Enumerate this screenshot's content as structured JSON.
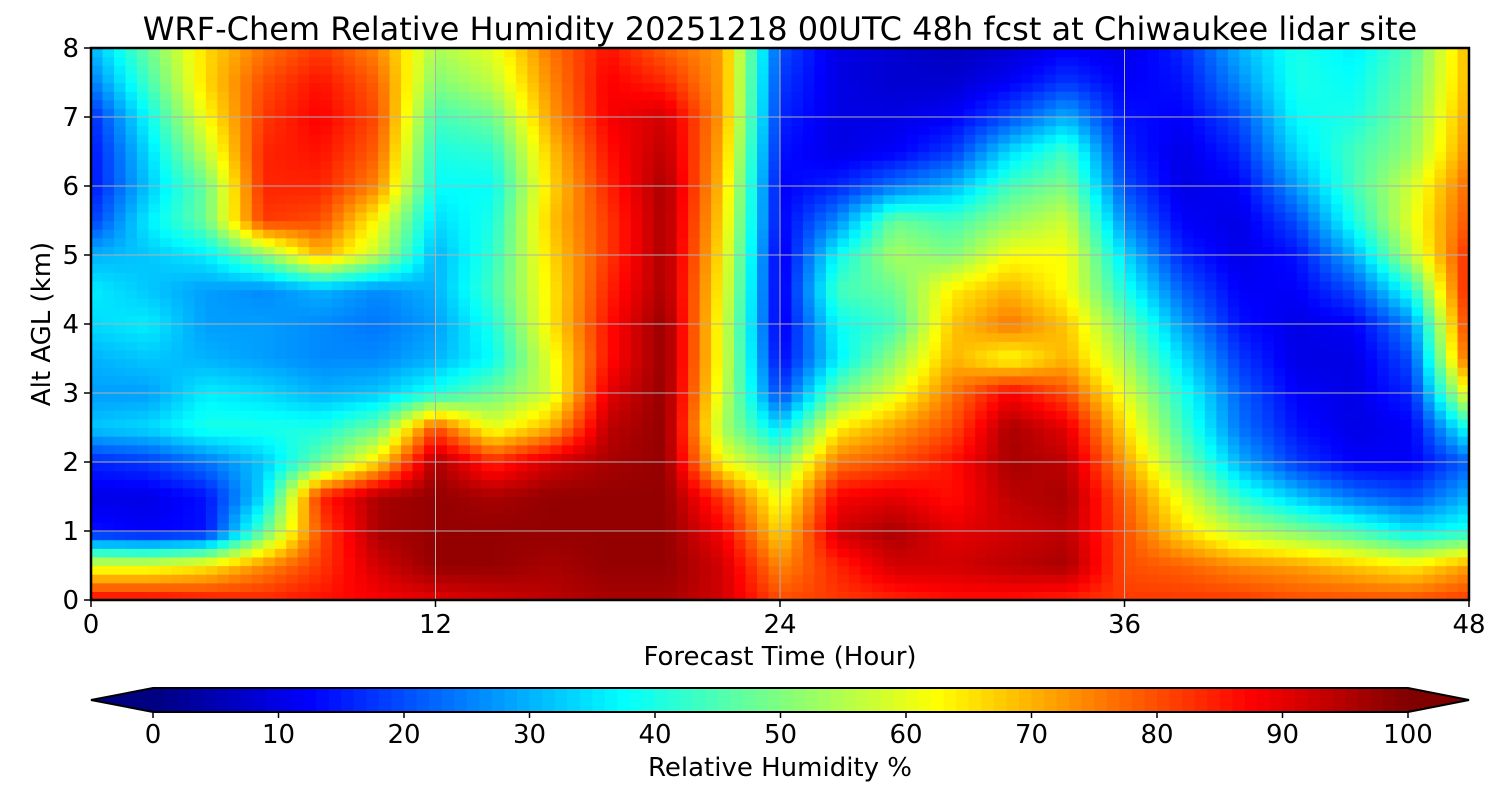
{
  "chart_data": {
    "type": "heatmap",
    "title": "WRF-Chem Relative Humidity 20251218 00UTC 48h fcst at Chiwaukee lidar site",
    "xlabel": "Forecast Time (Hour)",
    "ylabel": "Alt AGL (km)",
    "xlim": [
      0,
      48
    ],
    "ylim": [
      0,
      8
    ],
    "xticks": [
      0,
      12,
      24,
      36,
      48
    ],
    "yticks": [
      0,
      1,
      2,
      3,
      4,
      5,
      6,
      7,
      8
    ],
    "grid": true,
    "colorbar": {
      "label": "Relative Humidity %",
      "min": 0,
      "max": 100,
      "ticks": [
        0,
        10,
        20,
        30,
        40,
        50,
        60,
        70,
        80,
        90,
        100
      ],
      "colormap": "jet",
      "extend": "both",
      "position": "bottom"
    },
    "x": [
      0,
      2,
      4,
      6,
      8,
      10,
      12,
      14,
      16,
      18,
      20,
      22,
      24,
      26,
      28,
      30,
      32,
      34,
      36,
      38,
      40,
      42,
      44,
      46,
      48
    ],
    "y": [
      0,
      0.5,
      1,
      1.5,
      2,
      2.5,
      3,
      3.5,
      4,
      4.5,
      5,
      5.5,
      6,
      6.5,
      7,
      7.5,
      8
    ],
    "values": [
      [
        88,
        88,
        86,
        84,
        86,
        88,
        90,
        92,
        94,
        96,
        96,
        92,
        80,
        82,
        84,
        86,
        86,
        84,
        82,
        82,
        82,
        80,
        80,
        80,
        82
      ],
      [
        60,
        60,
        64,
        74,
        82,
        92,
        98,
        98,
        96,
        98,
        98,
        92,
        74,
        84,
        92,
        92,
        94,
        96,
        80,
        78,
        74,
        72,
        68,
        64,
        72
      ],
      [
        14,
        12,
        14,
        46,
        80,
        96,
        98,
        98,
        98,
        98,
        98,
        88,
        66,
        92,
        96,
        90,
        92,
        94,
        80,
        66,
        56,
        50,
        44,
        36,
        40
      ],
      [
        10,
        10,
        14,
        34,
        84,
        96,
        98,
        96,
        98,
        98,
        98,
        82,
        60,
        88,
        90,
        86,
        94,
        96,
        78,
        60,
        42,
        32,
        24,
        20,
        30
      ],
      [
        16,
        18,
        24,
        32,
        48,
        66,
        96,
        84,
        92,
        96,
        98,
        62,
        50,
        76,
        80,
        86,
        96,
        94,
        72,
        50,
        30,
        18,
        12,
        12,
        22
      ],
      [
        32,
        34,
        40,
        40,
        40,
        48,
        80,
        60,
        70,
        94,
        98,
        54,
        34,
        64,
        72,
        80,
        96,
        90,
        66,
        44,
        24,
        14,
        10,
        12,
        40
      ],
      [
        28,
        28,
        36,
        34,
        30,
        32,
        40,
        48,
        58,
        90,
        98,
        58,
        18,
        48,
        60,
        76,
        88,
        80,
        60,
        40,
        22,
        12,
        10,
        16,
        64
      ],
      [
        30,
        32,
        30,
        28,
        26,
        26,
        30,
        38,
        60,
        86,
        98,
        60,
        12,
        36,
        52,
        70,
        62,
        70,
        54,
        34,
        18,
        10,
        10,
        20,
        80
      ],
      [
        34,
        36,
        28,
        28,
        26,
        24,
        28,
        40,
        64,
        86,
        98,
        60,
        10,
        38,
        44,
        68,
        76,
        68,
        48,
        28,
        14,
        10,
        12,
        26,
        84
      ],
      [
        36,
        32,
        28,
        26,
        30,
        26,
        30,
        44,
        64,
        84,
        96,
        62,
        10,
        44,
        48,
        64,
        70,
        62,
        40,
        22,
        12,
        12,
        20,
        40,
        86
      ],
      [
        30,
        32,
        36,
        50,
        70,
        56,
        30,
        42,
        66,
        82,
        96,
        64,
        10,
        38,
        54,
        50,
        62,
        62,
        34,
        16,
        10,
        14,
        30,
        56,
        84
      ],
      [
        18,
        36,
        48,
        82,
        80,
        62,
        34,
        40,
        68,
        82,
        96,
        66,
        12,
        26,
        48,
        44,
        52,
        58,
        26,
        12,
        10,
        20,
        40,
        60,
        80
      ],
      [
        14,
        32,
        48,
        84,
        84,
        74,
        38,
        38,
        66,
        84,
        96,
        68,
        12,
        16,
        24,
        30,
        44,
        50,
        20,
        10,
        12,
        28,
        44,
        58,
        78
      ],
      [
        14,
        34,
        56,
        84,
        86,
        78,
        40,
        42,
        68,
        86,
        94,
        70,
        14,
        10,
        12,
        18,
        34,
        44,
        16,
        10,
        16,
        34,
        44,
        52,
        74
      ],
      [
        16,
        38,
        62,
        82,
        88,
        80,
        44,
        48,
        72,
        88,
        92,
        72,
        16,
        10,
        10,
        12,
        20,
        30,
        14,
        12,
        20,
        38,
        40,
        50,
        72
      ],
      [
        24,
        44,
        66,
        80,
        86,
        78,
        50,
        56,
        74,
        88,
        84,
        72,
        18,
        10,
        8,
        8,
        12,
        18,
        12,
        14,
        26,
        40,
        38,
        48,
        70
      ],
      [
        30,
        48,
        66,
        76,
        82,
        74,
        54,
        60,
        76,
        86,
        78,
        72,
        20,
        10,
        8,
        6,
        8,
        12,
        10,
        16,
        30,
        40,
        36,
        46,
        70
      ]
    ]
  }
}
